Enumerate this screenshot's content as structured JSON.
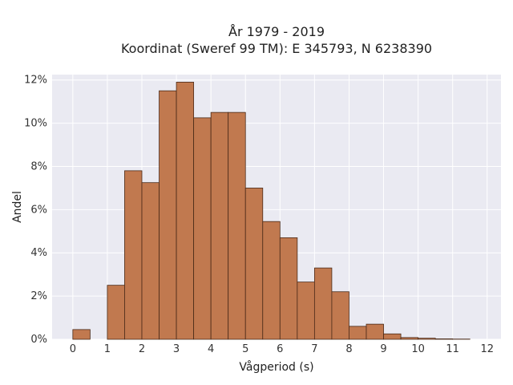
{
  "chart_data": {
    "type": "bar",
    "title_lines": [
      "År 1979 - 2019",
      "Koordinat (Sweref 99 TM): E 345793, N 6238390"
    ],
    "xlabel": "Vågperiod (s)",
    "ylabel": "Andel",
    "xlim": [
      -0.6,
      12.4
    ],
    "ylim": [
      0,
      0.1225
    ],
    "x_ticks": [
      0,
      1,
      2,
      3,
      4,
      5,
      6,
      7,
      8,
      9,
      10,
      11,
      12
    ],
    "y_ticks": [
      0,
      0.02,
      0.04,
      0.06,
      0.08,
      0.1,
      0.12
    ],
    "y_tick_labels": [
      "0%",
      "2%",
      "4%",
      "6%",
      "8%",
      "10%",
      "12%"
    ],
    "bin_width": 0.5,
    "bins": [
      {
        "start": 0.0,
        "value": 0.0045
      },
      {
        "start": 1.0,
        "value": 0.025
      },
      {
        "start": 1.5,
        "value": 0.078
      },
      {
        "start": 2.0,
        "value": 0.0725
      },
      {
        "start": 2.5,
        "value": 0.115
      },
      {
        "start": 3.0,
        "value": 0.119
      },
      {
        "start": 3.5,
        "value": 0.1025
      },
      {
        "start": 4.0,
        "value": 0.105
      },
      {
        "start": 4.5,
        "value": 0.105
      },
      {
        "start": 5.0,
        "value": 0.07
      },
      {
        "start": 5.5,
        "value": 0.0545
      },
      {
        "start": 6.0,
        "value": 0.047
      },
      {
        "start": 6.5,
        "value": 0.0265
      },
      {
        "start": 7.0,
        "value": 0.033
      },
      {
        "start": 7.5,
        "value": 0.022
      },
      {
        "start": 8.0,
        "value": 0.006
      },
      {
        "start": 8.5,
        "value": 0.007
      },
      {
        "start": 9.0,
        "value": 0.0025
      },
      {
        "start": 9.5,
        "value": 0.0008
      },
      {
        "start": 10.0,
        "value": 0.0005
      },
      {
        "start": 10.5,
        "value": 0.0002
      },
      {
        "start": 11.0,
        "value": 0.0001
      }
    ],
    "colors": {
      "bar_fill": "#c1794f",
      "bar_edge": "#4a2a18",
      "plot_background": "#eaeaf2",
      "grid": "#ffffff"
    },
    "grid": true
  }
}
